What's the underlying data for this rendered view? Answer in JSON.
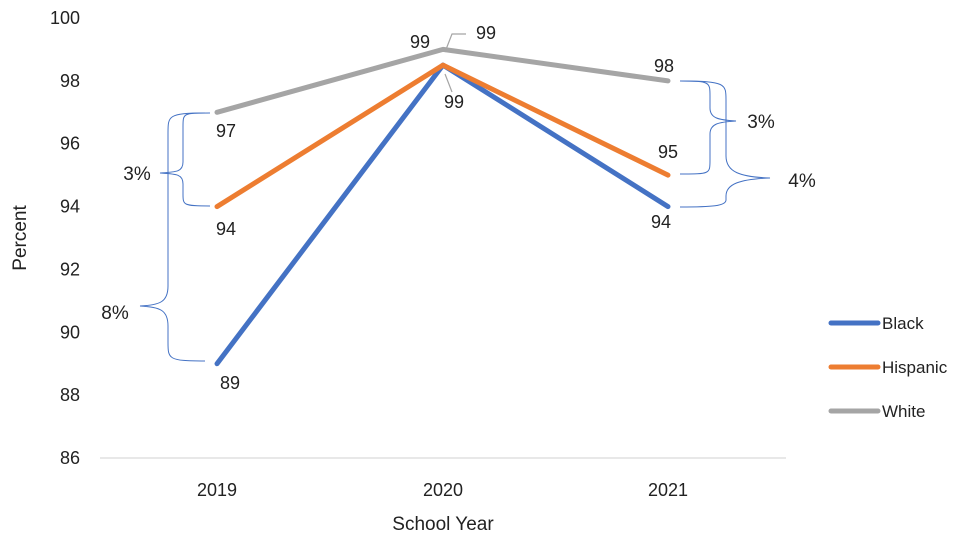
{
  "chart_data": {
    "type": "line",
    "title": "",
    "xlabel": "School Year",
    "ylabel": "Percent",
    "categories": [
      "2019",
      "2020",
      "2021"
    ],
    "ylim": [
      86,
      100
    ],
    "yticks": [
      "86",
      "88",
      "90",
      "92",
      "94",
      "96",
      "98",
      "100"
    ],
    "grid": false,
    "legend_position": "right",
    "series": [
      {
        "name": "Black",
        "color": "#4472C4",
        "values": [
          89,
          98.5,
          94
        ],
        "labels": [
          "89",
          "99",
          "94"
        ]
      },
      {
        "name": "Hispanic",
        "color": "#ED7D31",
        "values": [
          94,
          98.5,
          95
        ],
        "labels": [
          "94",
          "",
          "95"
        ]
      },
      {
        "name": "White",
        "color": "#A5A5A5",
        "values": [
          97,
          99,
          98
        ],
        "labels": [
          "97",
          "99",
          "98"
        ]
      }
    ],
    "annotations": [
      {
        "text": "99",
        "note": "leader label at 2020 near top"
      },
      {
        "text": "3%",
        "between": "White and Hispanic",
        "category": "2019"
      },
      {
        "text": "8%",
        "between": "White and Black",
        "category": "2019"
      },
      {
        "text": "3%",
        "between": "White and Hispanic",
        "category": "2021"
      },
      {
        "text": "4%",
        "between": "White and Black",
        "category": "2021"
      }
    ]
  }
}
